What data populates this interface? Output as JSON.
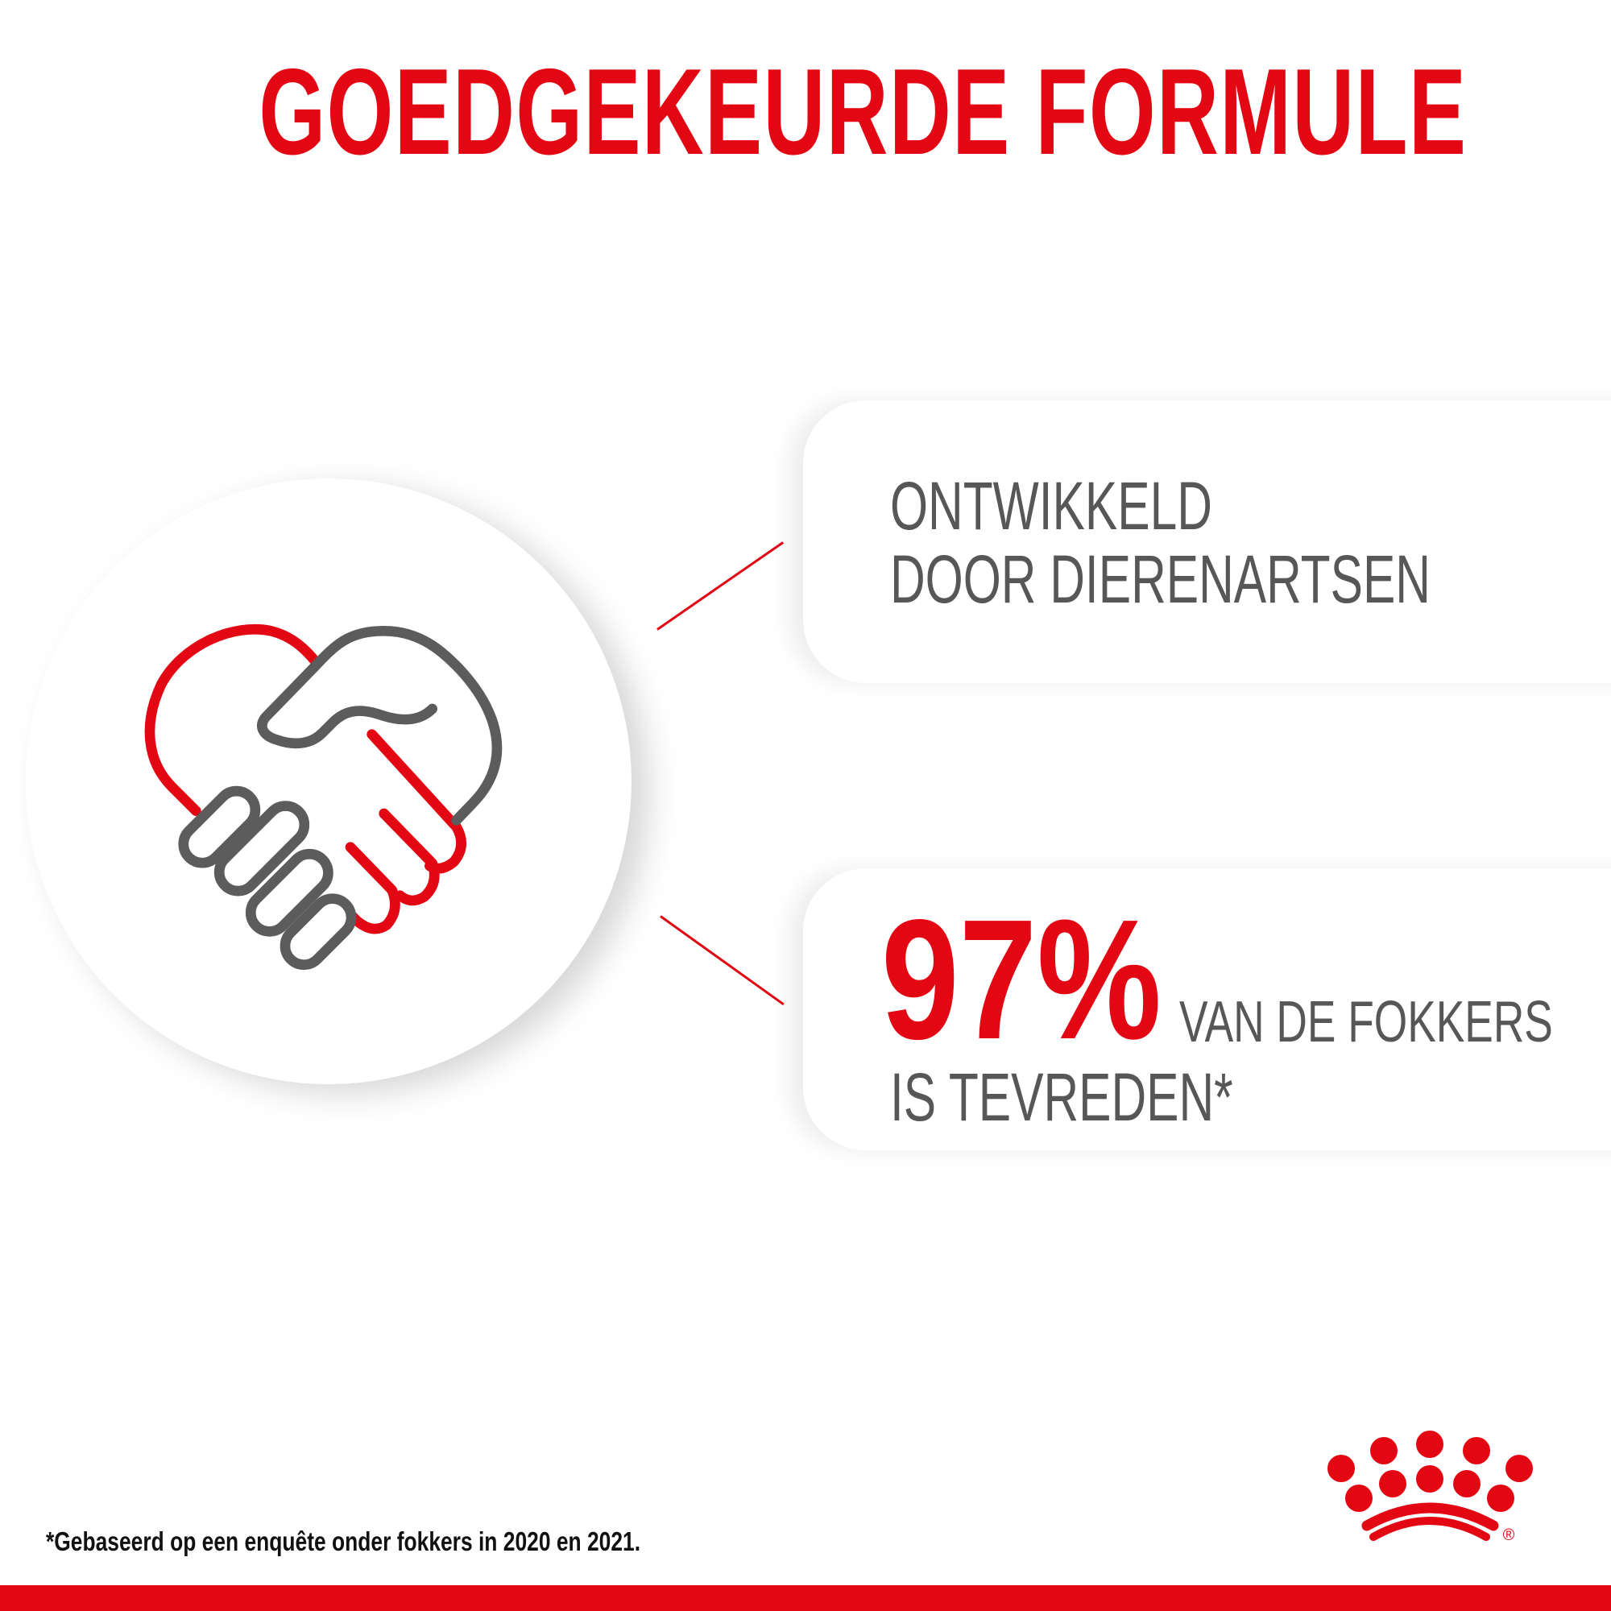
{
  "title": "GOEDGEKEURDE FORMULE",
  "card1": {
    "line1": "ONTWIKKELD",
    "line2": "DOOR DIERENARTSEN"
  },
  "card2": {
    "percent": "97%",
    "line1": "VAN DE FOKKERS",
    "line2": "IS TEVREDEN*"
  },
  "footnote": "*Gebaseerd op een enquête onder fokkers in 2020 en 2021.",
  "logo": {
    "name": "Royal Canin",
    "registered": "®"
  },
  "icons": {
    "main": "handshake-heart-icon",
    "logo": "crown-logo-icon"
  },
  "colors": {
    "brand_red": "#e30613",
    "text_gray": "#575757",
    "background": "#ffffff"
  }
}
